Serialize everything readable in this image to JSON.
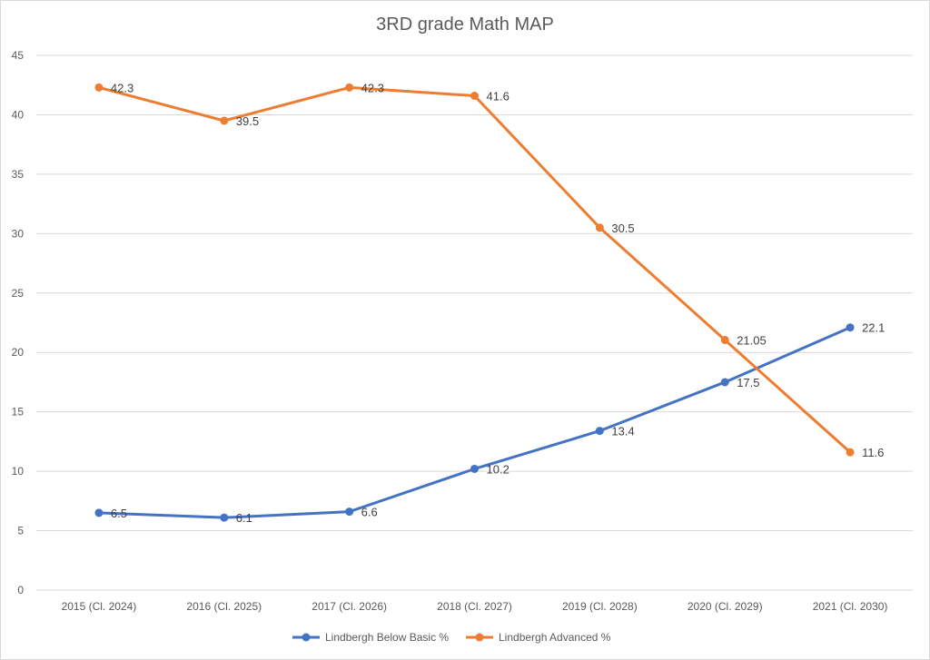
{
  "chart_data": {
    "type": "line",
    "title": "3RD grade Math MAP",
    "xlabel": "",
    "ylabel": "",
    "categories": [
      "2015 (Cl. 2024)",
      "2016 (Cl. 2025)",
      "2017 (Cl. 2026)",
      "2018 (Cl. 2027)",
      "2019 (Cl. 2028)",
      "2020 (Cl. 2029)",
      "2021 (Cl. 2030)"
    ],
    "ylim": [
      0,
      45
    ],
    "yticks": [
      0,
      5,
      10,
      15,
      20,
      25,
      30,
      35,
      40,
      45
    ],
    "grid": true,
    "legend_position": "bottom",
    "series": [
      {
        "name": "Lindbergh Below Basic %",
        "color": "#4472C4",
        "values": [
          6.5,
          6.1,
          6.6,
          10.2,
          13.4,
          17.5,
          22.1
        ],
        "labels": [
          "6.5",
          "6.1",
          "6.6",
          "10.2",
          "13.4",
          "17.5",
          "22.1"
        ]
      },
      {
        "name": "Lindbergh Advanced %",
        "color": "#ED7D31",
        "values": [
          42.3,
          39.5,
          42.3,
          41.6,
          30.5,
          21.05,
          11.6
        ],
        "labels": [
          "42.3",
          "39.5",
          "42.3",
          "41.6",
          "30.5",
          "21.05",
          "11.6"
        ]
      }
    ]
  }
}
